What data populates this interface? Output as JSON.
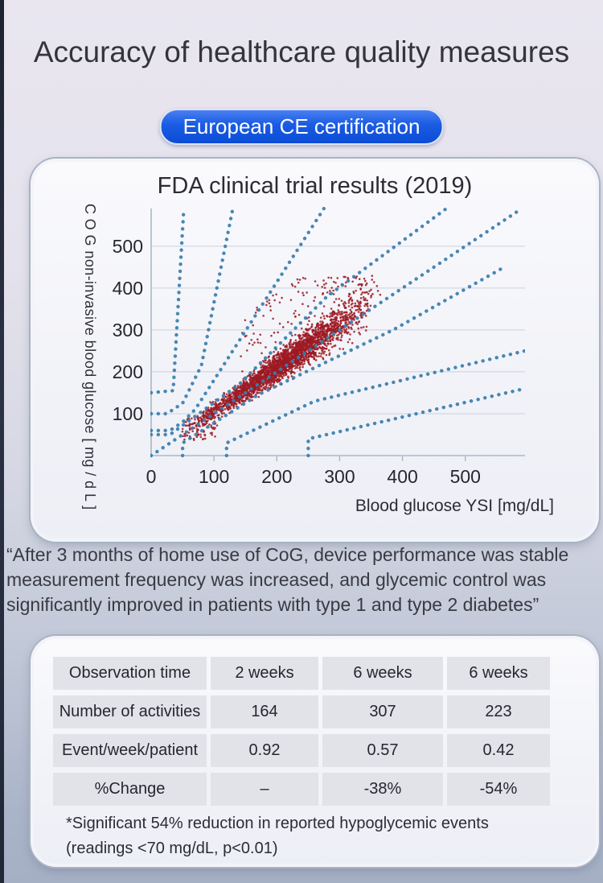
{
  "page": {
    "title": "Accuracy of healthcare quality measures",
    "badge": "European CE certification"
  },
  "chart_data": {
    "type": "scatter",
    "title": "FDA clinical trial results (2019)",
    "xlabel": "Blood glucose YSI [mg/dL]",
    "ylabel": "C O G non-invasive blood glucose [ mg / d L ]",
    "xlim": [
      0,
      595
    ],
    "ylim": [
      0,
      590
    ],
    "x_ticks": [
      0,
      100,
      200,
      300,
      400,
      500
    ],
    "y_ticks": [
      100,
      200,
      300,
      400,
      500
    ],
    "grid": "horizontal",
    "legend": "none",
    "point_color": "#9d1a23",
    "line_color": "#3a7eae",
    "grid_color": "#c9d1dc",
    "axis_color": "#a9b7c7",
    "description": "Dense cloud of paired CoG vs YSI glucose readings lying along the identity line, overlaid with dotted consensus (Parkes) error-grid zone boundaries",
    "error_grid_lines": {
      "identity": [
        [
          0,
          0
        ],
        [
          590,
          590
        ]
      ],
      "B_upper": [
        [
          0,
          50
        ],
        [
          30,
          50
        ],
        [
          140,
          170
        ],
        [
          280,
          380
        ],
        [
          470,
          590
        ]
      ],
      "C_upper": [
        [
          0,
          60
        ],
        [
          30,
          60
        ],
        [
          50,
          80
        ],
        [
          70,
          110
        ],
        [
          275,
          590
        ]
      ],
      "D_upper": [
        [
          0,
          100
        ],
        [
          25,
          100
        ],
        [
          50,
          125
        ],
        [
          80,
          215
        ],
        [
          130,
          590
        ]
      ],
      "E_upper": [
        [
          0,
          150
        ],
        [
          35,
          155
        ],
        [
          52,
          590
        ]
      ],
      "B_lower": [
        [
          50,
          0
        ],
        [
          50,
          30
        ],
        [
          170,
          145
        ],
        [
          385,
          300
        ],
        [
          562,
          450
        ]
      ],
      "C_lower": [
        [
          120,
          0
        ],
        [
          120,
          30
        ],
        [
          260,
          130
        ],
        [
          595,
          250
        ]
      ],
      "D_lower": [
        [
          250,
          0
        ],
        [
          250,
          40
        ],
        [
          595,
          160
        ]
      ]
    },
    "scatter_cloud": {
      "seed": 42,
      "core_points": 2600,
      "x_start": 62,
      "x_span": 296,
      "y_start": 66,
      "slope": 1.04,
      "along_jitter": 19,
      "perp_base": 13,
      "perp_growth": 36,
      "upper_outliers": 130,
      "lowleft_points": 70,
      "x_range_approx": [
        45,
        380
      ],
      "y_range_approx": [
        25,
        430
      ]
    }
  },
  "quote": {
    "line1": "“After 3 months of home use of CoG, device performance was stable",
    "line2": "measurement frequency was increased, and glycemic control was",
    "line3": "significantly improved in patients with type 1 and type 2 diabetes”"
  },
  "table": {
    "rows": [
      {
        "label": "Observation time",
        "values": [
          "2 weeks",
          "6 weeks",
          "6 weeks"
        ]
      },
      {
        "label": "Number of activities",
        "values": [
          "164",
          "307",
          "223"
        ]
      },
      {
        "label": "Event/week/patient",
        "values": [
          "0.92",
          "0.57",
          "0.42"
        ]
      },
      {
        "label": "%Change",
        "values": [
          "–",
          "-38%",
          "-54%"
        ]
      }
    ]
  },
  "footnote": {
    "line1": "*Significant 54% reduction in reported hypoglycemic events",
    "line2": "(readings <70 mg/dL, p<0.01)"
  }
}
